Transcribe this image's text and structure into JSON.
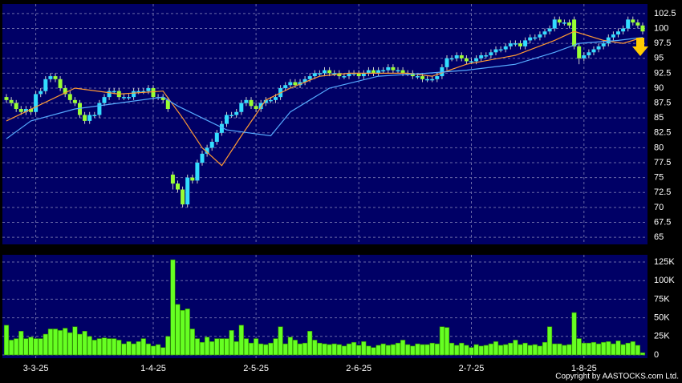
{
  "chart_data": {
    "type": "candlestick",
    "categories": [
      null,
      null,
      null,
      null,
      null,
      null,
      "3-3-25",
      null,
      null,
      null,
      null,
      null,
      null,
      null,
      null,
      null,
      null,
      null,
      null,
      null,
      null,
      null,
      null,
      null,
      null,
      null,
      null,
      null,
      null,
      null,
      "1-4-25",
      null,
      null,
      null,
      null,
      null,
      null,
      null,
      null,
      null,
      null,
      null,
      null,
      null,
      null,
      null,
      null,
      null,
      null,
      null,
      null,
      "2-5-25",
      null,
      null,
      null,
      null,
      null,
      null,
      null,
      null,
      null,
      null,
      null,
      null,
      null,
      null,
      null,
      null,
      null,
      null,
      null,
      null,
      "2-6-25",
      null,
      null,
      null,
      null,
      null,
      null,
      null,
      null,
      null,
      null,
      null,
      null,
      null,
      null,
      null,
      null,
      null,
      null,
      null,
      null,
      null,
      null,
      "2-7-25",
      null,
      null,
      null,
      null,
      null,
      null,
      null,
      null,
      null,
      null,
      null,
      null,
      null,
      null,
      null,
      null,
      null,
      null,
      null,
      null,
      null,
      null,
      "1-8-25",
      null,
      null,
      null,
      null,
      null,
      null,
      null,
      null,
      null,
      null,
      null,
      null
    ],
    "ohlc": [
      [
        88.5,
        89,
        87.5,
        88
      ],
      [
        88,
        88.5,
        87,
        87.5
      ],
      [
        87.5,
        88,
        86,
        86.5
      ],
      [
        86.5,
        87,
        85.5,
        86
      ],
      [
        86,
        87,
        85.5,
        86.5
      ],
      [
        86.5,
        87,
        85.5,
        86
      ],
      [
        86,
        89.5,
        85.5,
        89
      ],
      [
        89,
        90,
        88.5,
        89.5
      ],
      [
        89.5,
        92,
        89,
        91.5
      ],
      [
        91.5,
        92.5,
        91,
        92
      ],
      [
        92,
        92.5,
        91,
        91.5
      ],
      [
        91.5,
        92,
        89.5,
        90
      ],
      [
        90,
        90.5,
        88.5,
        89
      ],
      [
        89,
        89.5,
        87.5,
        88
      ],
      [
        88,
        88.5,
        87,
        87.5
      ],
      [
        87.5,
        88,
        85,
        85.5
      ],
      [
        85.5,
        86,
        84,
        84.5
      ],
      [
        84.5,
        86,
        84,
        85.5
      ],
      [
        85.5,
        86,
        85,
        85.5
      ],
      [
        85.5,
        88,
        85,
        87.5
      ],
      [
        87.5,
        89,
        87,
        88.5
      ],
      [
        88.5,
        90,
        88,
        89.5
      ],
      [
        89.5,
        90,
        89,
        89.5
      ],
      [
        89.5,
        90,
        88,
        88.5
      ],
      [
        88.5,
        89,
        88,
        88.5
      ],
      [
        88.5,
        89,
        88,
        88.5
      ],
      [
        88.5,
        90,
        88,
        89.5
      ],
      [
        89.5,
        90,
        89,
        89.5
      ],
      [
        89.5,
        90,
        89,
        89.5
      ],
      [
        89.5,
        90.5,
        89,
        90
      ],
      [
        90,
        90.5,
        88,
        88.5
      ],
      [
        88.5,
        89,
        88,
        88.5
      ],
      [
        88.5,
        89,
        87.5,
        88
      ],
      [
        88,
        88.5,
        86,
        86.5
      ],
      [
        75.5,
        76,
        73,
        74
      ],
      [
        74,
        74.5,
        72.5,
        73
      ],
      [
        73,
        73.5,
        70,
        70.5
      ],
      [
        70.5,
        75.5,
        70,
        75
      ],
      [
        75,
        75.5,
        74,
        74.5
      ],
      [
        74.5,
        78,
        74,
        77.5
      ],
      [
        77.5,
        79.5,
        77,
        79
      ],
      [
        79,
        80.5,
        78.5,
        80
      ],
      [
        80,
        81.5,
        79.5,
        81
      ],
      [
        81,
        83,
        80.5,
        82.5
      ],
      [
        82.5,
        84.5,
        82,
        84
      ],
      [
        84,
        86,
        83.5,
        85.5
      ],
      [
        85.5,
        86,
        85,
        85.5
      ],
      [
        85.5,
        86.5,
        85,
        86
      ],
      [
        86,
        88,
        85.5,
        87.5
      ],
      [
        87.5,
        88.5,
        87,
        88
      ],
      [
        88,
        88.5,
        86.5,
        87
      ],
      [
        87,
        87.5,
        86,
        86.5
      ],
      [
        86.5,
        88,
        86,
        87.5
      ],
      [
        87.5,
        88.5,
        87,
        88
      ],
      [
        88,
        88.5,
        87.5,
        88
      ],
      [
        88,
        89,
        87.5,
        88.5
      ],
      [
        88.5,
        90.5,
        88,
        90
      ],
      [
        90,
        91,
        89.5,
        90.5
      ],
      [
        90.5,
        91.5,
        90,
        91
      ],
      [
        91,
        91.5,
        90,
        90.5
      ],
      [
        90.5,
        91.5,
        90,
        91
      ],
      [
        91,
        92,
        90.5,
        91.5
      ],
      [
        91.5,
        92.5,
        91,
        92
      ],
      [
        92,
        93,
        91.5,
        92.5
      ],
      [
        92.5,
        93,
        92,
        92.5
      ],
      [
        92.5,
        93.5,
        92,
        93
      ],
      [
        93,
        93.5,
        92,
        92.5
      ],
      [
        92.5,
        93,
        92,
        92.5
      ],
      [
        92.5,
        93,
        91.5,
        92
      ],
      [
        92,
        92.5,
        91.5,
        92
      ],
      [
        92,
        93,
        91.5,
        92.5
      ],
      [
        92.5,
        93,
        92,
        92.5
      ],
      [
        92.5,
        93,
        91.5,
        92
      ],
      [
        92,
        93,
        91.5,
        92.5
      ],
      [
        92.5,
        93.5,
        92,
        93
      ],
      [
        93,
        93.5,
        92,
        92.5
      ],
      [
        92.5,
        93.5,
        92,
        93
      ],
      [
        93,
        93.5,
        92.5,
        93
      ],
      [
        93,
        94,
        92.5,
        93.5
      ],
      [
        93.5,
        94,
        92.5,
        93
      ],
      [
        93,
        93.5,
        92.5,
        93
      ],
      [
        93,
        93.5,
        92,
        92.5
      ],
      [
        92.5,
        93,
        92,
        92.5
      ],
      [
        92.5,
        93,
        91.5,
        92
      ],
      [
        92,
        92.5,
        91.5,
        92
      ],
      [
        92,
        92.5,
        91,
        91.5
      ],
      [
        91.5,
        92,
        91,
        91.5
      ],
      [
        91.5,
        92,
        91,
        91.5
      ],
      [
        91.5,
        92.5,
        91,
        92
      ],
      [
        92,
        94,
        91.5,
        93.5
      ],
      [
        93.5,
        95.5,
        93,
        95
      ],
      [
        95,
        95.5,
        94.5,
        95
      ],
      [
        95,
        96,
        94.5,
        95.5
      ],
      [
        95.5,
        96,
        94.5,
        95
      ],
      [
        95,
        95.5,
        94,
        94.5
      ],
      [
        94.5,
        95,
        94,
        94.5
      ],
      [
        94.5,
        95.5,
        94,
        95
      ],
      [
        95,
        96,
        94.5,
        95.5
      ],
      [
        95.5,
        96,
        95,
        95.5
      ],
      [
        95.5,
        96.5,
        95,
        96
      ],
      [
        96,
        97,
        95.5,
        96.5
      ],
      [
        96.5,
        97,
        96,
        96.5
      ],
      [
        96.5,
        97.5,
        96,
        97
      ],
      [
        97,
        98,
        96.5,
        97.5
      ],
      [
        97.5,
        98,
        97,
        97.5
      ],
      [
        97.5,
        98,
        96.5,
        97
      ],
      [
        97,
        98.5,
        96.5,
        98
      ],
      [
        98,
        99,
        97.5,
        98.5
      ],
      [
        98.5,
        99,
        98,
        98.5
      ],
      [
        98.5,
        99.5,
        98,
        99
      ],
      [
        99,
        100,
        98.5,
        99.5
      ],
      [
        99.5,
        100.5,
        99,
        100
      ],
      [
        100,
        102,
        99.5,
        101.5
      ],
      [
        101.5,
        102,
        100.5,
        101
      ],
      [
        101,
        101.5,
        100.5,
        101
      ],
      [
        101,
        101.5,
        100,
        100.5
      ],
      [
        101.5,
        102,
        96.5,
        97
      ],
      [
        97,
        97.5,
        94,
        95
      ],
      [
        95,
        96,
        94.5,
        95.5
      ],
      [
        95.5,
        96.5,
        95,
        96
      ],
      [
        96,
        97,
        95.5,
        96.5
      ],
      [
        96.5,
        97.5,
        96,
        97
      ],
      [
        97,
        98,
        96.5,
        97.5
      ],
      [
        97.5,
        99,
        97,
        98.5
      ],
      [
        98.5,
        99.5,
        98,
        99
      ],
      [
        99,
        100,
        98.5,
        99.5
      ],
      [
        99.5,
        100.5,
        99,
        100
      ],
      [
        100,
        102,
        99.5,
        101.5
      ],
      [
        101.5,
        102,
        100.5,
        101
      ],
      [
        101,
        101.5,
        100,
        100.5
      ],
      [
        100.5,
        101,
        99,
        99.5
      ]
    ],
    "up_color": "#33ddff",
    "down_color": "#99ff33",
    "ylim": [
      63.8,
      104.1
    ],
    "yticks": [
      65,
      67.5,
      70,
      72.5,
      75,
      77.5,
      80,
      82.5,
      85,
      87.5,
      90,
      92.5,
      95,
      97.5,
      100,
      102.5
    ],
    "grid": true,
    "series": [
      {
        "color": "#ff9933",
        "x": [
          0,
          14,
          23,
          32,
          36,
          40,
          44,
          48,
          53,
          58,
          64,
          70,
          77,
          82,
          87,
          94,
          104,
          112,
          116,
          122,
          126,
          130
        ],
        "values": [
          84.5,
          90,
          89,
          89.5,
          85,
          80,
          77,
          82,
          88,
          90,
          92,
          92.5,
          92.5,
          92.5,
          92,
          94,
          95.5,
          98,
          99.5,
          98,
          97.5,
          98.5
        ]
      },
      {
        "color": "#55aaff",
        "x": [
          0,
          5,
          14,
          23,
          32,
          35,
          40,
          45,
          54,
          58,
          66,
          76,
          86,
          94,
          104,
          112,
          117,
          125,
          130
        ],
        "values": [
          81.5,
          84.5,
          86.5,
          87.5,
          88.5,
          87,
          85,
          83,
          82,
          86,
          90,
          92,
          92.5,
          93,
          94,
          96,
          97.5,
          98,
          98.5
        ]
      }
    ],
    "volume": {
      "color": "#66ff22",
      "values": [
        40000,
        20000,
        22000,
        32000,
        22000,
        24000,
        22000,
        22000,
        28000,
        35000,
        35000,
        33000,
        36000,
        30000,
        38000,
        28000,
        32000,
        25000,
        20000,
        22000,
        23000,
        22000,
        22000,
        20000,
        15000,
        18000,
        15000,
        18000,
        22000,
        15000,
        12000,
        14000,
        10000,
        25000,
        128000,
        68000,
        60000,
        62000,
        35000,
        22000,
        17000,
        24000,
        18000,
        22000,
        22000,
        22000,
        33000,
        18000,
        40000,
        22000,
        16000,
        22000,
        15000,
        14000,
        16000,
        22000,
        38000,
        15000,
        24000,
        20000,
        15000,
        16000,
        32000,
        20000,
        16000,
        15000,
        14000,
        15000,
        14000,
        12000,
        15000,
        17000,
        13000,
        18000,
        12000,
        10000,
        13000,
        15000,
        13000,
        14000,
        16000,
        20000,
        14000,
        12000,
        15000,
        14000,
        14000,
        16000,
        15000,
        38000,
        37000,
        16000,
        13000,
        16000,
        13000,
        10000,
        14000,
        12000,
        13000,
        15000,
        18000,
        13000,
        14000,
        16000,
        20000,
        14000,
        16000,
        13000,
        14000,
        12000,
        17000,
        38000,
        15000,
        15000,
        13000,
        14000,
        57000,
        22000,
        16000,
        16000,
        17000,
        15000,
        17000,
        18000,
        15000,
        19000,
        14000,
        16000,
        18000,
        13000,
        3000
      ],
      "ylim": [
        -4300,
        134700
      ],
      "yticks": [
        0,
        {
          "value": 25000,
          "label": "25K"
        },
        {
          "value": 50000,
          "label": "50K"
        },
        {
          "value": 75000,
          "label": "75K"
        },
        {
          "value": 100000,
          "label": "100K"
        },
        {
          "value": 125000,
          "label": "125K"
        }
      ]
    },
    "copyright": "Copyright by AASTOCKS.com Ltd."
  }
}
